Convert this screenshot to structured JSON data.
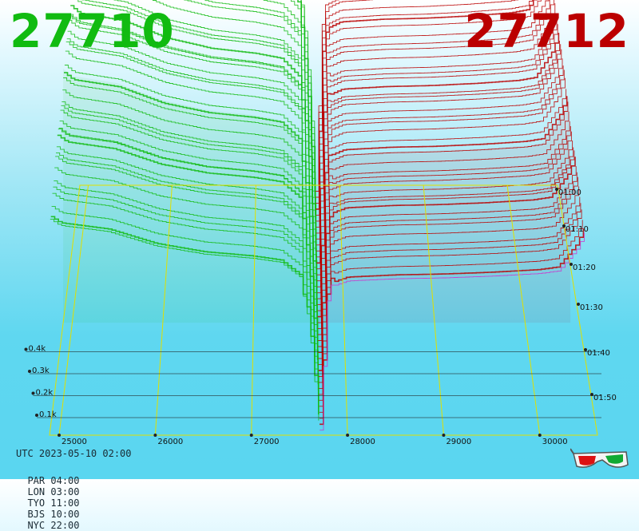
{
  "header": {
    "bid_price": "27710",
    "ask_price": "27712"
  },
  "footer": {
    "utc": "UTC 2023-05-10 02:00",
    "timezones": [
      {
        "label": "PAR",
        "time": "04:00"
      },
      {
        "label": "LON",
        "time": "03:00"
      },
      {
        "label": "TYO",
        "time": "11:00"
      },
      {
        "label": "BJS",
        "time": "10:00"
      },
      {
        "label": "NYC",
        "time": "22:00"
      }
    ]
  },
  "colors": {
    "bid": "#11bb11",
    "ask": "#bb0000",
    "grid": "#e0e000",
    "depth_axis": "#222222",
    "latest_ask": "#cc33cc"
  },
  "icons": [
    "3d-glasses-icon"
  ],
  "chart_data": {
    "type": "area",
    "subtype": "3d-order-book-depth-waterfall",
    "price_ticks": [
      25000,
      26000,
      27000,
      28000,
      29000,
      30000
    ],
    "price_range": [
      24900,
      30600
    ],
    "mid_price": 27711,
    "depth_ticks": [
      "0.1k",
      "0.2k",
      "0.3k",
      "0.4k"
    ],
    "depth_tick_values": [
      100,
      200,
      300,
      400
    ],
    "depth_range": [
      0,
      560
    ],
    "time_ticks": [
      "01:00",
      "01:10",
      "01:20",
      "01:30",
      "01:40",
      "01:50"
    ],
    "time_range_minutes": [
      55,
      120
    ],
    "snapshot_count": 42,
    "bid_profile": {
      "prices": [
        24900,
        25000,
        25500,
        26000,
        26500,
        27000,
        27300,
        27500,
        27600,
        27710
      ],
      "cumulative_depth": [
        520,
        505,
        490,
        455,
        435,
        425,
        415,
        380,
        260,
        0
      ]
    },
    "ask_profile": {
      "prices": [
        27712,
        27800,
        28000,
        28500,
        29000,
        29500,
        30000,
        30200,
        30400,
        30500
      ],
      "cumulative_depth": [
        0,
        330,
        345,
        350,
        352,
        356,
        362,
        368,
        420,
        470
      ]
    }
  }
}
